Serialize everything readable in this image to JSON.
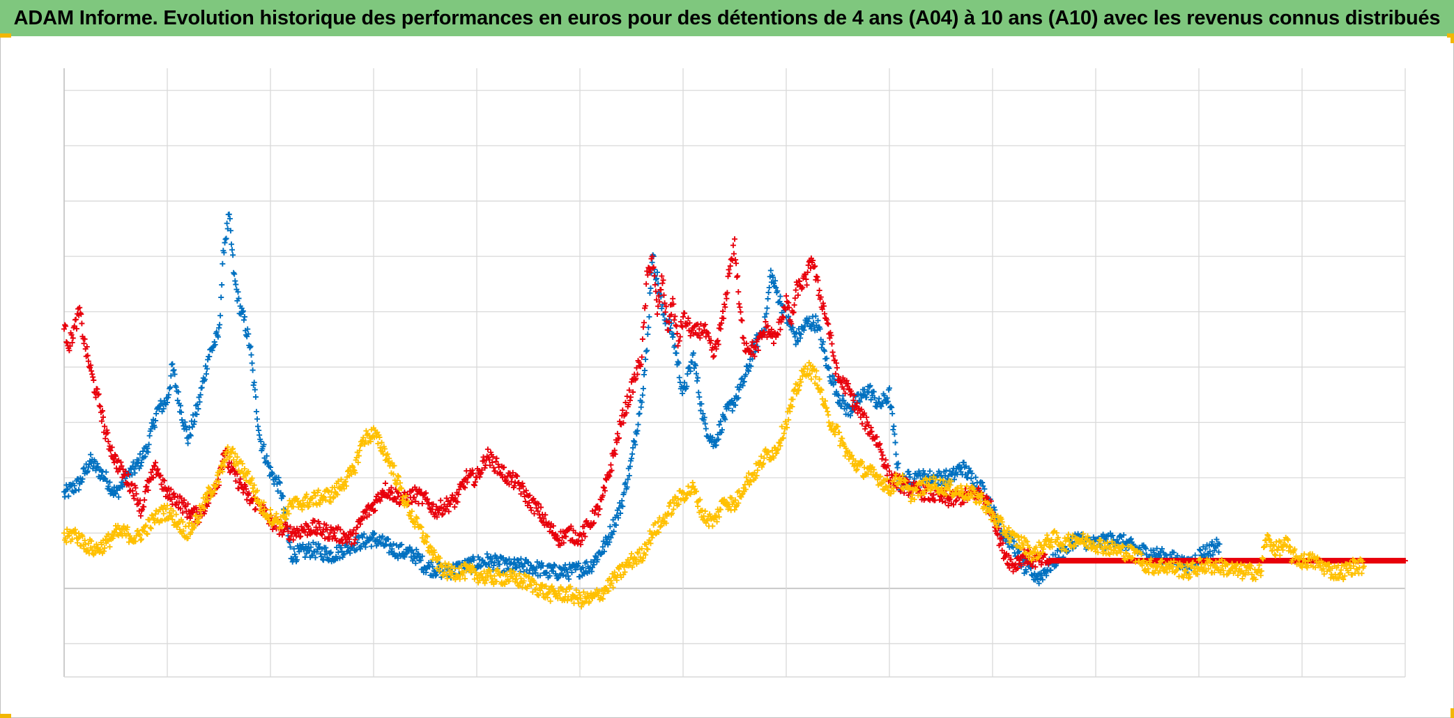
{
  "chart_data": {
    "type": "scatter",
    "title": "ADAM Informe. Evolution historique des performances en euros pour des détentions de 4 ans (A04) à 10 ans (A10) avec les revenus connus distribués",
    "xlabel": "",
    "ylabel": "",
    "xlim": [
      0,
      13
    ],
    "ylim": [
      -1.6,
      9.4
    ],
    "grid": true,
    "legend": "none",
    "marker": "plus",
    "series": [
      {
        "color": "#0070c0",
        "points": [
          [
            0.0,
            1.7
          ],
          [
            0.15,
            1.9
          ],
          [
            0.25,
            2.3
          ],
          [
            0.4,
            2.0
          ],
          [
            0.5,
            1.7
          ],
          [
            0.6,
            2.0
          ],
          [
            0.7,
            2.2
          ],
          [
            0.8,
            2.5
          ],
          [
            0.9,
            3.2
          ],
          [
            1.0,
            3.4
          ],
          [
            1.05,
            4.0
          ],
          [
            1.1,
            3.5
          ],
          [
            1.2,
            2.7
          ],
          [
            1.3,
            3.3
          ],
          [
            1.4,
            4.2
          ],
          [
            1.5,
            4.6
          ],
          [
            1.55,
            6.2
          ],
          [
            1.6,
            6.7
          ],
          [
            1.65,
            5.6
          ],
          [
            1.7,
            5.1
          ],
          [
            1.75,
            4.8
          ],
          [
            1.8,
            4.4
          ],
          [
            1.85,
            3.5
          ],
          [
            1.9,
            2.7
          ],
          [
            2.0,
            2.1
          ],
          [
            2.1,
            1.8
          ],
          [
            2.2,
            0.6
          ],
          [
            2.4,
            0.7
          ],
          [
            2.6,
            0.6
          ],
          [
            2.8,
            0.8
          ],
          [
            3.0,
            0.9
          ],
          [
            3.2,
            0.7
          ],
          [
            3.4,
            0.6
          ],
          [
            3.5,
            0.4
          ],
          [
            3.7,
            0.3
          ],
          [
            3.9,
            0.4
          ],
          [
            4.1,
            0.5
          ],
          [
            4.3,
            0.4
          ],
          [
            4.5,
            0.4
          ],
          [
            4.7,
            0.3
          ],
          [
            4.9,
            0.3
          ],
          [
            5.1,
            0.4
          ],
          [
            5.25,
            0.8
          ],
          [
            5.4,
            1.5
          ],
          [
            5.5,
            2.3
          ],
          [
            5.6,
            3.5
          ],
          [
            5.65,
            4.3
          ],
          [
            5.7,
            6.0
          ],
          [
            5.75,
            5.6
          ],
          [
            5.8,
            5.0
          ],
          [
            5.9,
            4.6
          ],
          [
            6.0,
            3.5
          ],
          [
            6.1,
            4.2
          ],
          [
            6.2,
            3.0
          ],
          [
            6.3,
            2.6
          ],
          [
            6.4,
            3.1
          ],
          [
            6.5,
            3.4
          ],
          [
            6.6,
            3.8
          ],
          [
            6.7,
            4.4
          ],
          [
            6.8,
            4.8
          ],
          [
            6.85,
            5.7
          ],
          [
            6.9,
            5.4
          ],
          [
            7.0,
            4.9
          ],
          [
            7.1,
            4.5
          ],
          [
            7.2,
            4.8
          ],
          [
            7.3,
            4.8
          ],
          [
            7.4,
            4.0
          ],
          [
            7.5,
            3.5
          ],
          [
            7.6,
            3.2
          ],
          [
            7.7,
            3.4
          ],
          [
            7.8,
            3.6
          ],
          [
            7.9,
            3.3
          ],
          [
            8.0,
            3.5
          ],
          [
            8.1,
            1.9
          ],
          [
            8.2,
            2.0
          ],
          [
            8.4,
            2.0
          ],
          [
            8.6,
            2.0
          ],
          [
            8.7,
            2.2
          ],
          [
            8.8,
            2.0
          ],
          [
            8.9,
            1.8
          ],
          [
            9.0,
            1.4
          ],
          [
            9.1,
            1.0
          ],
          [
            9.2,
            0.8
          ],
          [
            9.3,
            0.4
          ],
          [
            9.45,
            0.2
          ],
          [
            9.6,
            0.5
          ],
          [
            9.8,
            0.9
          ],
          [
            10.0,
            0.8
          ],
          [
            10.2,
            0.9
          ],
          [
            10.4,
            0.7
          ],
          [
            10.6,
            0.6
          ],
          [
            10.8,
            0.5
          ],
          [
            10.9,
            0.4
          ],
          [
            11.0,
            0.6
          ],
          [
            11.1,
            0.7
          ],
          [
            11.2,
            0.8
          ]
        ]
      },
      {
        "color": "#e8000b",
        "points": [
          [
            0.0,
            4.7
          ],
          [
            0.05,
            4.4
          ],
          [
            0.15,
            5.0
          ],
          [
            0.2,
            4.4
          ],
          [
            0.25,
            4.0
          ],
          [
            0.3,
            3.6
          ],
          [
            0.35,
            3.3
          ],
          [
            0.4,
            2.8
          ],
          [
            0.5,
            2.3
          ],
          [
            0.6,
            2.0
          ],
          [
            0.7,
            1.7
          ],
          [
            0.75,
            1.4
          ],
          [
            0.8,
            1.8
          ],
          [
            0.9,
            2.2
          ],
          [
            0.95,
            1.9
          ],
          [
            1.0,
            1.7
          ],
          [
            1.1,
            1.6
          ],
          [
            1.2,
            1.4
          ],
          [
            1.3,
            1.3
          ],
          [
            1.4,
            1.6
          ],
          [
            1.5,
            2.0
          ],
          [
            1.55,
            2.5
          ],
          [
            1.6,
            2.2
          ],
          [
            1.7,
            1.9
          ],
          [
            1.8,
            1.6
          ],
          [
            1.9,
            1.5
          ],
          [
            2.0,
            1.2
          ],
          [
            2.1,
            1.1
          ],
          [
            2.2,
            1.0
          ],
          [
            2.4,
            1.1
          ],
          [
            2.6,
            1.0
          ],
          [
            2.8,
            0.9
          ],
          [
            2.9,
            1.3
          ],
          [
            3.0,
            1.5
          ],
          [
            3.1,
            1.8
          ],
          [
            3.2,
            1.7
          ],
          [
            3.3,
            1.6
          ],
          [
            3.4,
            1.7
          ],
          [
            3.5,
            1.6
          ],
          [
            3.6,
            1.4
          ],
          [
            3.7,
            1.5
          ],
          [
            3.8,
            1.6
          ],
          [
            3.9,
            2.0
          ],
          [
            4.0,
            2.0
          ],
          [
            4.1,
            2.4
          ],
          [
            4.2,
            2.2
          ],
          [
            4.3,
            2.0
          ],
          [
            4.4,
            1.9
          ],
          [
            4.5,
            1.6
          ],
          [
            4.6,
            1.4
          ],
          [
            4.7,
            1.1
          ],
          [
            4.8,
            0.9
          ],
          [
            4.9,
            1.0
          ],
          [
            5.0,
            0.9
          ],
          [
            5.1,
            1.2
          ],
          [
            5.2,
            1.5
          ],
          [
            5.3,
            2.2
          ],
          [
            5.4,
            3.0
          ],
          [
            5.5,
            3.6
          ],
          [
            5.6,
            4.2
          ],
          [
            5.65,
            5.6
          ],
          [
            5.7,
            6.0
          ],
          [
            5.75,
            5.0
          ],
          [
            5.8,
            5.6
          ],
          [
            5.85,
            4.7
          ],
          [
            5.9,
            5.2
          ],
          [
            5.95,
            4.4
          ],
          [
            6.0,
            4.9
          ],
          [
            6.1,
            4.6
          ],
          [
            6.2,
            4.7
          ],
          [
            6.3,
            4.2
          ],
          [
            6.35,
            4.6
          ],
          [
            6.4,
            5.0
          ],
          [
            6.45,
            5.8
          ],
          [
            6.5,
            6.2
          ],
          [
            6.55,
            5.0
          ],
          [
            6.6,
            4.4
          ],
          [
            6.7,
            4.3
          ],
          [
            6.8,
            4.7
          ],
          [
            6.9,
            4.5
          ],
          [
            7.0,
            5.2
          ],
          [
            7.05,
            4.8
          ],
          [
            7.1,
            5.4
          ],
          [
            7.2,
            5.6
          ],
          [
            7.25,
            6.0
          ],
          [
            7.3,
            5.5
          ],
          [
            7.4,
            4.8
          ],
          [
            7.5,
            3.8
          ],
          [
            7.6,
            3.6
          ],
          [
            7.7,
            3.2
          ],
          [
            7.8,
            2.9
          ],
          [
            7.9,
            2.6
          ],
          [
            8.0,
            2.0
          ],
          [
            8.1,
            1.9
          ],
          [
            8.2,
            1.8
          ],
          [
            8.4,
            1.7
          ],
          [
            8.6,
            1.6
          ],
          [
            8.8,
            1.7
          ],
          [
            8.9,
            1.7
          ],
          [
            9.0,
            1.4
          ],
          [
            9.05,
            1.0
          ],
          [
            9.1,
            0.7
          ],
          [
            9.2,
            0.4
          ],
          [
            9.3,
            0.6
          ],
          [
            9.4,
            0.5
          ],
          [
            9.5,
            0.5
          ],
          [
            9.6,
            0.5
          ],
          [
            10.0,
            0.5
          ],
          [
            10.5,
            0.5
          ],
          [
            11.0,
            0.5
          ],
          [
            11.5,
            0.5
          ],
          [
            12.0,
            0.5
          ],
          [
            12.5,
            0.5
          ],
          [
            13.0,
            0.5
          ]
        ]
      },
      {
        "color": "#ffc000",
        "points": [
          [
            0.0,
            0.9
          ],
          [
            0.1,
            1.0
          ],
          [
            0.2,
            0.8
          ],
          [
            0.3,
            0.7
          ],
          [
            0.4,
            0.8
          ],
          [
            0.5,
            1.0
          ],
          [
            0.6,
            1.0
          ],
          [
            0.7,
            0.9
          ],
          [
            0.8,
            1.1
          ],
          [
            0.9,
            1.3
          ],
          [
            1.0,
            1.4
          ],
          [
            1.1,
            1.2
          ],
          [
            1.2,
            1.0
          ],
          [
            1.3,
            1.3
          ],
          [
            1.4,
            1.7
          ],
          [
            1.5,
            2.0
          ],
          [
            1.6,
            2.5
          ],
          [
            1.7,
            2.2
          ],
          [
            1.8,
            2.0
          ],
          [
            1.9,
            1.5
          ],
          [
            2.0,
            1.3
          ],
          [
            2.1,
            1.2
          ],
          [
            2.2,
            1.5
          ],
          [
            2.4,
            1.6
          ],
          [
            2.6,
            1.7
          ],
          [
            2.7,
            1.9
          ],
          [
            2.8,
            2.1
          ],
          [
            2.9,
            2.7
          ],
          [
            3.0,
            2.8
          ],
          [
            3.1,
            2.5
          ],
          [
            3.2,
            2.1
          ],
          [
            3.3,
            1.6
          ],
          [
            3.4,
            1.2
          ],
          [
            3.5,
            0.9
          ],
          [
            3.6,
            0.5
          ],
          [
            3.7,
            0.3
          ],
          [
            3.9,
            0.3
          ],
          [
            4.1,
            0.2
          ],
          [
            4.3,
            0.2
          ],
          [
            4.5,
            0.1
          ],
          [
            4.7,
            -0.1
          ],
          [
            4.9,
            -0.1
          ],
          [
            5.0,
            -0.2
          ],
          [
            5.1,
            -0.2
          ],
          [
            5.2,
            -0.1
          ],
          [
            5.3,
            0.1
          ],
          [
            5.4,
            0.3
          ],
          [
            5.5,
            0.5
          ],
          [
            5.6,
            0.6
          ],
          [
            5.7,
            1.0
          ],
          [
            5.8,
            1.2
          ],
          [
            5.9,
            1.5
          ],
          [
            6.0,
            1.7
          ],
          [
            6.1,
            1.8
          ],
          [
            6.2,
            1.3
          ],
          [
            6.3,
            1.2
          ],
          [
            6.4,
            1.6
          ],
          [
            6.5,
            1.5
          ],
          [
            6.6,
            1.9
          ],
          [
            6.7,
            2.1
          ],
          [
            6.8,
            2.4
          ],
          [
            6.9,
            2.5
          ],
          [
            7.0,
            3.0
          ],
          [
            7.1,
            3.6
          ],
          [
            7.2,
            4.0
          ],
          [
            7.3,
            3.8
          ],
          [
            7.4,
            3.1
          ],
          [
            7.5,
            2.8
          ],
          [
            7.6,
            2.4
          ],
          [
            7.7,
            2.2
          ],
          [
            7.8,
            2.1
          ],
          [
            7.9,
            2.0
          ],
          [
            8.0,
            1.8
          ],
          [
            8.1,
            2.0
          ],
          [
            8.2,
            1.7
          ],
          [
            8.3,
            1.8
          ],
          [
            8.4,
            1.9
          ],
          [
            8.6,
            1.8
          ],
          [
            8.8,
            1.7
          ],
          [
            8.9,
            1.6
          ],
          [
            9.0,
            1.3
          ],
          [
            9.1,
            1.1
          ],
          [
            9.2,
            0.9
          ],
          [
            9.3,
            0.8
          ],
          [
            9.4,
            0.6
          ],
          [
            9.5,
            0.8
          ],
          [
            9.6,
            0.9
          ],
          [
            9.7,
            0.8
          ],
          [
            9.8,
            0.9
          ],
          [
            10.0,
            0.8
          ],
          [
            10.2,
            0.7
          ],
          [
            10.4,
            0.6
          ],
          [
            10.5,
            0.4
          ],
          [
            10.7,
            0.4
          ],
          [
            10.9,
            0.3
          ],
          [
            11.0,
            0.4
          ],
          [
            11.2,
            0.4
          ],
          [
            11.4,
            0.3
          ],
          [
            11.5,
            0.3
          ],
          [
            11.6,
            0.3
          ],
          [
            11.65,
            0.9
          ],
          [
            11.75,
            0.7
          ],
          [
            11.85,
            0.8
          ],
          [
            11.9,
            0.6
          ],
          [
            12.0,
            0.5
          ],
          [
            12.1,
            0.5
          ],
          [
            12.2,
            0.4
          ],
          [
            12.3,
            0.3
          ],
          [
            12.4,
            0.3
          ],
          [
            12.5,
            0.4
          ],
          [
            12.6,
            0.4
          ]
        ]
      }
    ]
  }
}
